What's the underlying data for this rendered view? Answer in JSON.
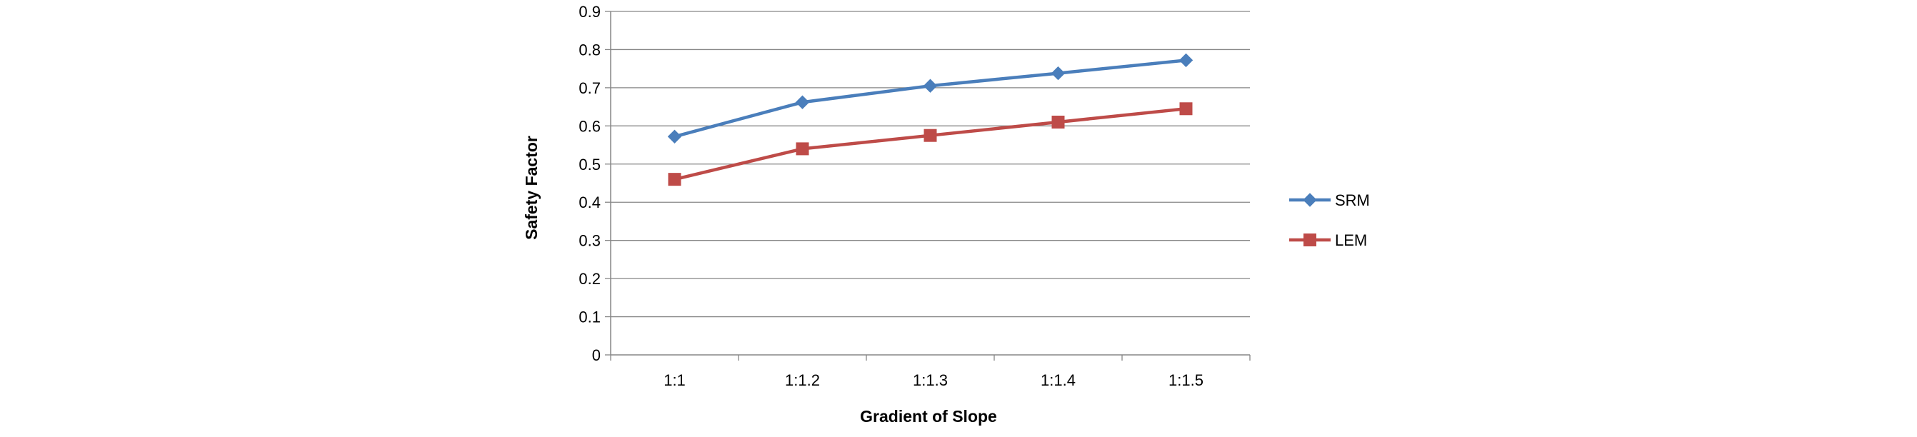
{
  "chart_data": {
    "type": "line",
    "title": "",
    "xlabel": "Gradient of Slope",
    "ylabel": "Safety Factor",
    "categories": [
      "1:1",
      "1:1.2",
      "1:1.3",
      "1:1.4",
      "1:1.5"
    ],
    "y_ticks": [
      "0",
      "0.1",
      "0.2",
      "0.3",
      "0.4",
      "0.5",
      "0.6",
      "0.7",
      "0.8",
      "0.9"
    ],
    "ylim": [
      0,
      0.9
    ],
    "grid": "horizontal",
    "legend_position": "right",
    "series": [
      {
        "name": "SRM",
        "values": [
          0.572,
          0.662,
          0.705,
          0.738,
          0.772
        ],
        "color": "#4a7ebb",
        "marker": "diamond"
      },
      {
        "name": "LEM",
        "values": [
          0.46,
          0.54,
          0.575,
          0.61,
          0.645
        ],
        "color": "#be4b48",
        "marker": "square"
      }
    ]
  }
}
